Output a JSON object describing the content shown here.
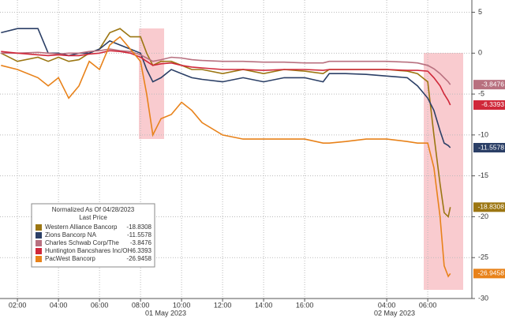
{
  "chart_data": {
    "type": "line",
    "legend_title": "Normalized As Of 04/28/2023",
    "legend_subtitle": "Last Price",
    "date_labels": [
      "01 May 2023",
      "02 May 2023"
    ],
    "x": [
      1.2,
      2,
      3,
      3.5,
      4,
      4.5,
      5,
      5.5,
      6,
      6.5,
      7,
      7.5,
      8,
      8.3,
      8.6,
      9,
      9.5,
      10,
      10.5,
      11,
      12,
      13,
      14,
      15,
      16,
      16.9,
      17.2,
      18,
      19,
      20,
      21,
      21.5,
      22,
      22.3,
      22.6,
      22.8,
      23,
      23.1
    ],
    "xlim": [
      1.15,
      24.15
    ],
    "xticks": [
      {
        "value": 2,
        "label": "02:00"
      },
      {
        "value": 4,
        "label": "04:00"
      },
      {
        "value": 6,
        "label": "06:00"
      },
      {
        "value": 8,
        "label": "08:00"
      },
      {
        "value": 10,
        "label": "10:00"
      },
      {
        "value": 12,
        "label": "12:00"
      },
      {
        "value": 14,
        "label": "14:00"
      },
      {
        "value": 16,
        "label": "16:00"
      },
      {
        "value": 20,
        "label": "04:00"
      },
      {
        "value": 22,
        "label": "06:00"
      }
    ],
    "ylim": [
      -30,
      6.5
    ],
    "yticks": [
      5,
      0,
      -5,
      -10,
      -15,
      -20,
      -25,
      -30
    ],
    "grid": true,
    "series": [
      {
        "name": "Western Alliance Bancorp",
        "color": "#9c7612",
        "values": [
          0,
          -1,
          -0.5,
          -1,
          -0.5,
          -1,
          -0.8,
          0,
          0.5,
          2.5,
          3,
          2,
          2,
          0,
          -1.5,
          -1,
          -1,
          -1.5,
          -2,
          -2,
          -2.5,
          -2,
          -2.5,
          -2,
          -2.2,
          -2.5,
          -2,
          -2,
          -2,
          -2,
          -2.2,
          -2.5,
          -3.5,
          -10,
          -16,
          -19.5,
          -20,
          -18.8308
        ]
      },
      {
        "name": "Zions Bancorp NA",
        "color": "#2b3f66",
        "values": [
          2.5,
          3,
          3,
          0,
          0,
          -0.3,
          0,
          0,
          0.5,
          1.5,
          1,
          0.5,
          0,
          -2,
          -3.5,
          -3,
          -2,
          -2.5,
          -3,
          -3.2,
          -3.5,
          -3,
          -3.5,
          -3,
          -3,
          -3.5,
          -2.5,
          -2.5,
          -2.6,
          -2.8,
          -3,
          -4,
          -5.5,
          -7,
          -9.5,
          -11,
          -11.3,
          -11.5578
        ]
      },
      {
        "name": "Charles Schwab Corp/The",
        "color": "#b8707f",
        "values": [
          0,
          0,
          0.1,
          0,
          -0.1,
          0,
          0,
          0.2,
          0.3,
          0.5,
          0.3,
          0.2,
          -0.2,
          -0.6,
          -1,
          -0.8,
          -0.5,
          -0.6,
          -0.8,
          -0.9,
          -1,
          -1,
          -1.1,
          -1.1,
          -1.2,
          -1.2,
          -1,
          -1,
          -1,
          -1,
          -1.1,
          -1.2,
          -1.5,
          -1.9,
          -2.5,
          -3,
          -3.5,
          -3.8476
        ]
      },
      {
        "name": "Huntington Bancshares Inc/OH",
        "color": "#d0283a",
        "values": [
          0.2,
          0,
          -0.2,
          -0.3,
          -0.2,
          -0.3,
          -0.3,
          -0.1,
          0,
          0.3,
          0.2,
          0,
          -0.5,
          -1,
          -1.5,
          -1.3,
          -1.2,
          -1.5,
          -1.7,
          -1.8,
          -2,
          -2,
          -2.1,
          -2,
          -2,
          -2.1,
          -2,
          -2,
          -2,
          -2,
          -2.1,
          -2.1,
          -2.2,
          -3,
          -4,
          -5,
          -5.8,
          -6.3393
        ]
      },
      {
        "name": "PacWest Bancorp",
        "color": "#e8821a",
        "values": [
          -1.5,
          -2,
          -3,
          -4,
          -3,
          -5.5,
          -4,
          -1,
          -2,
          1,
          2,
          0.5,
          -1,
          -5,
          -10,
          -8,
          -7.5,
          -6,
          -7,
          -8.5,
          -10,
          -10.5,
          -10.5,
          -10.5,
          -10.5,
          -11,
          -11,
          -10.8,
          -10.5,
          -10.5,
          -10.8,
          -11,
          -11,
          -14,
          -20,
          -26,
          -27.3,
          -26.9458
        ]
      }
    ]
  }
}
